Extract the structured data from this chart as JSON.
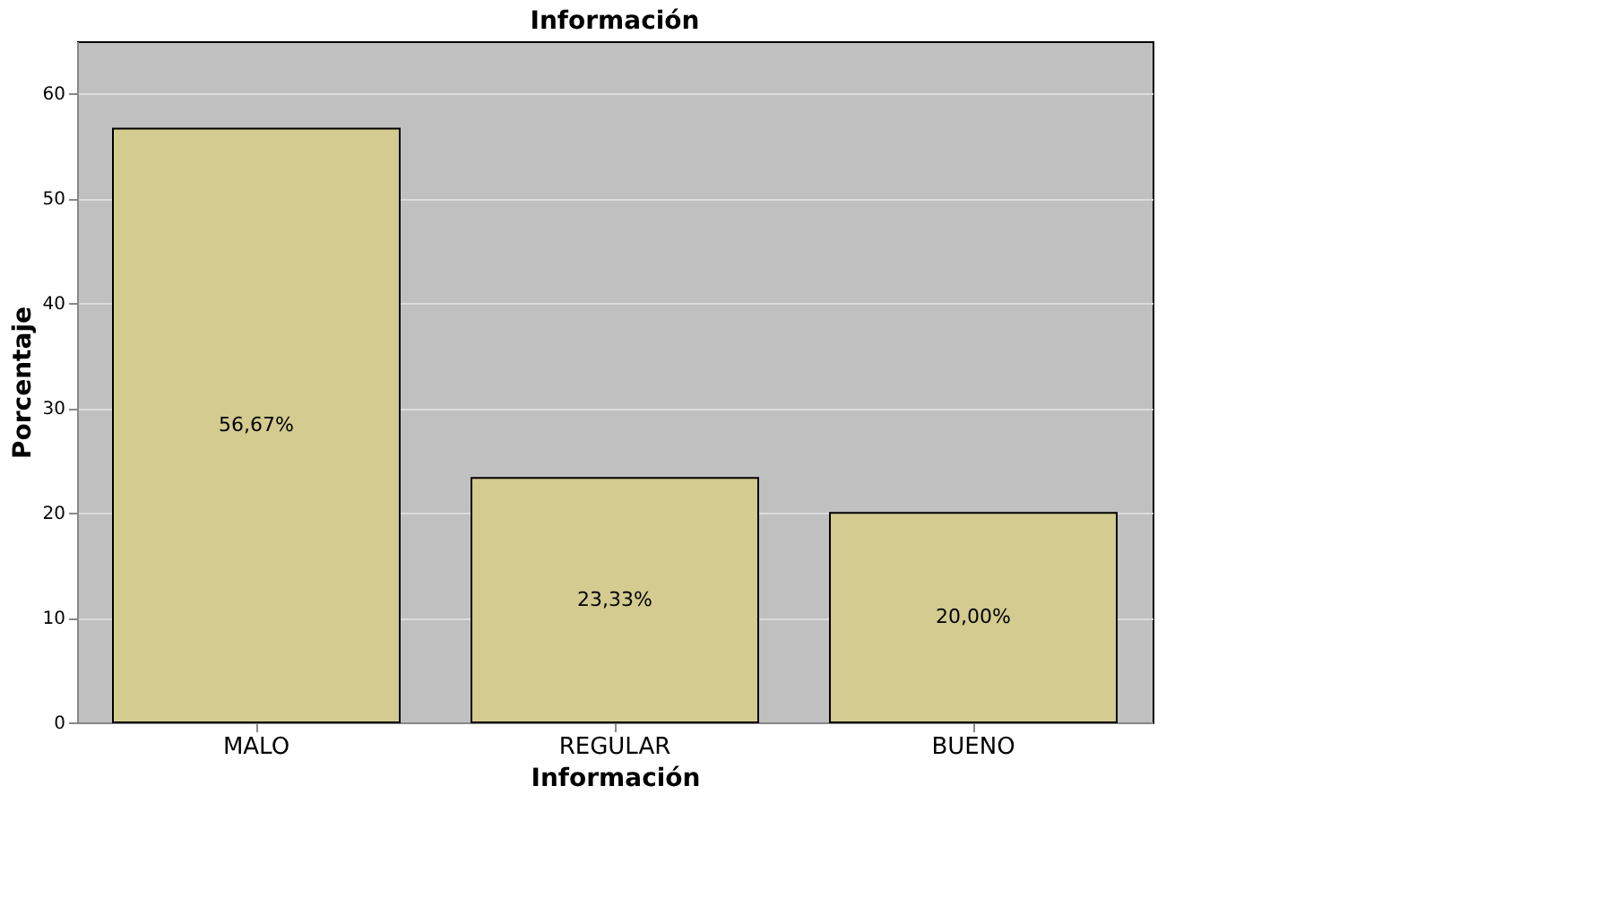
{
  "chart_data": {
    "type": "bar",
    "title": "Información",
    "xlabel": "Información",
    "ylabel": "Porcentaje",
    "categories": [
      "MALO",
      "REGULAR",
      "BUENO"
    ],
    "values": [
      56.67,
      23.33,
      20.0
    ],
    "value_labels": [
      "56,67%",
      "23,33%",
      "20,00%"
    ],
    "color": "#d3cb8f",
    "ylim": [
      0,
      65
    ],
    "yticks": [
      0,
      10,
      20,
      30,
      40,
      50,
      60
    ],
    "grid": "y"
  }
}
